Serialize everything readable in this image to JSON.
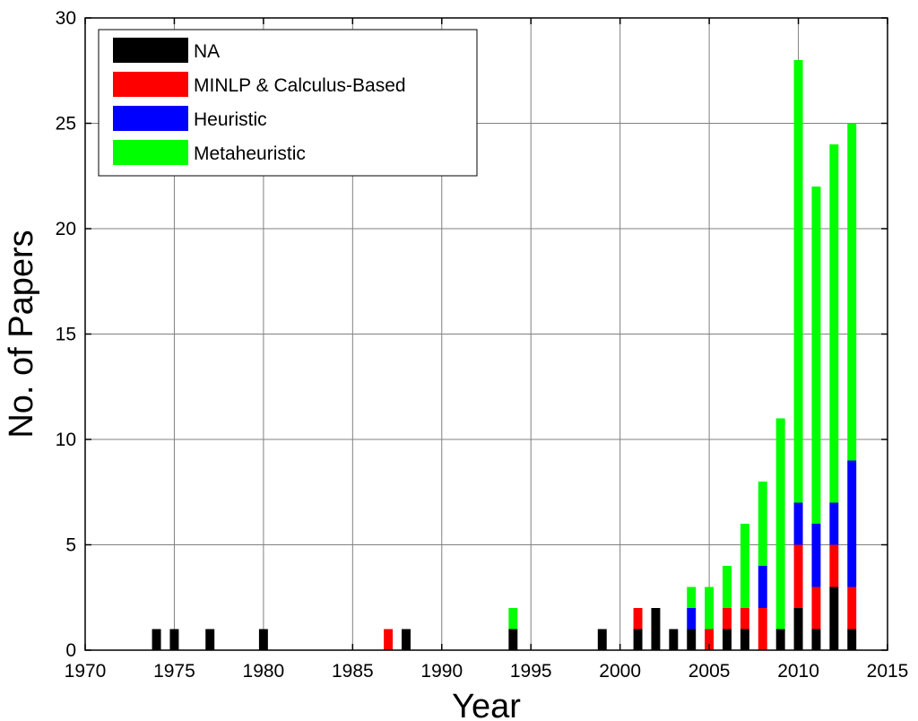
{
  "chart_data": {
    "type": "bar",
    "stacked": true,
    "title": "",
    "xlabel": "Year",
    "ylabel": "No. of Papers",
    "xlim": [
      1970,
      2015
    ],
    "ylim": [
      0,
      30
    ],
    "x_ticks": [
      "1970",
      "1975",
      "1980",
      "1985",
      "1990",
      "1995",
      "2000",
      "2005",
      "2010",
      "2015"
    ],
    "y_ticks": [
      "0",
      "5",
      "10",
      "15",
      "20",
      "25",
      "30"
    ],
    "grid": true,
    "legend_position": "top-left",
    "x": [
      1974,
      1975,
      1977,
      1980,
      1987,
      1988,
      1994,
      1999,
      2001,
      2002,
      2003,
      2004,
      2005,
      2006,
      2007,
      2008,
      2009,
      2010,
      2011,
      2012,
      2013
    ],
    "series": [
      {
        "name": "NA",
        "color": "#000000",
        "values": [
          1,
          1,
          1,
          1,
          0,
          1,
          1,
          1,
          1,
          2,
          1,
          1,
          0,
          1,
          1,
          0,
          1,
          2,
          1,
          3,
          1
        ]
      },
      {
        "name": "MINLP & Calculus-Based",
        "color": "#ff0000",
        "values": [
          0,
          0,
          0,
          0,
          1,
          0,
          0,
          0,
          1,
          0,
          0,
          0,
          1,
          1,
          1,
          2,
          0,
          3,
          2,
          2,
          2
        ]
      },
      {
        "name": "Heuristic",
        "color": "#0000ff",
        "values": [
          0,
          0,
          0,
          0,
          0,
          0,
          0,
          0,
          0,
          0,
          0,
          1,
          0,
          0,
          0,
          2,
          0,
          2,
          3,
          2,
          6
        ]
      },
      {
        "name": "Metaheuristic",
        "color": "#00ff00",
        "values": [
          0,
          0,
          0,
          0,
          0,
          0,
          1,
          0,
          0,
          0,
          0,
          1,
          2,
          2,
          4,
          4,
          10,
          21,
          16,
          17,
          16
        ]
      }
    ]
  }
}
